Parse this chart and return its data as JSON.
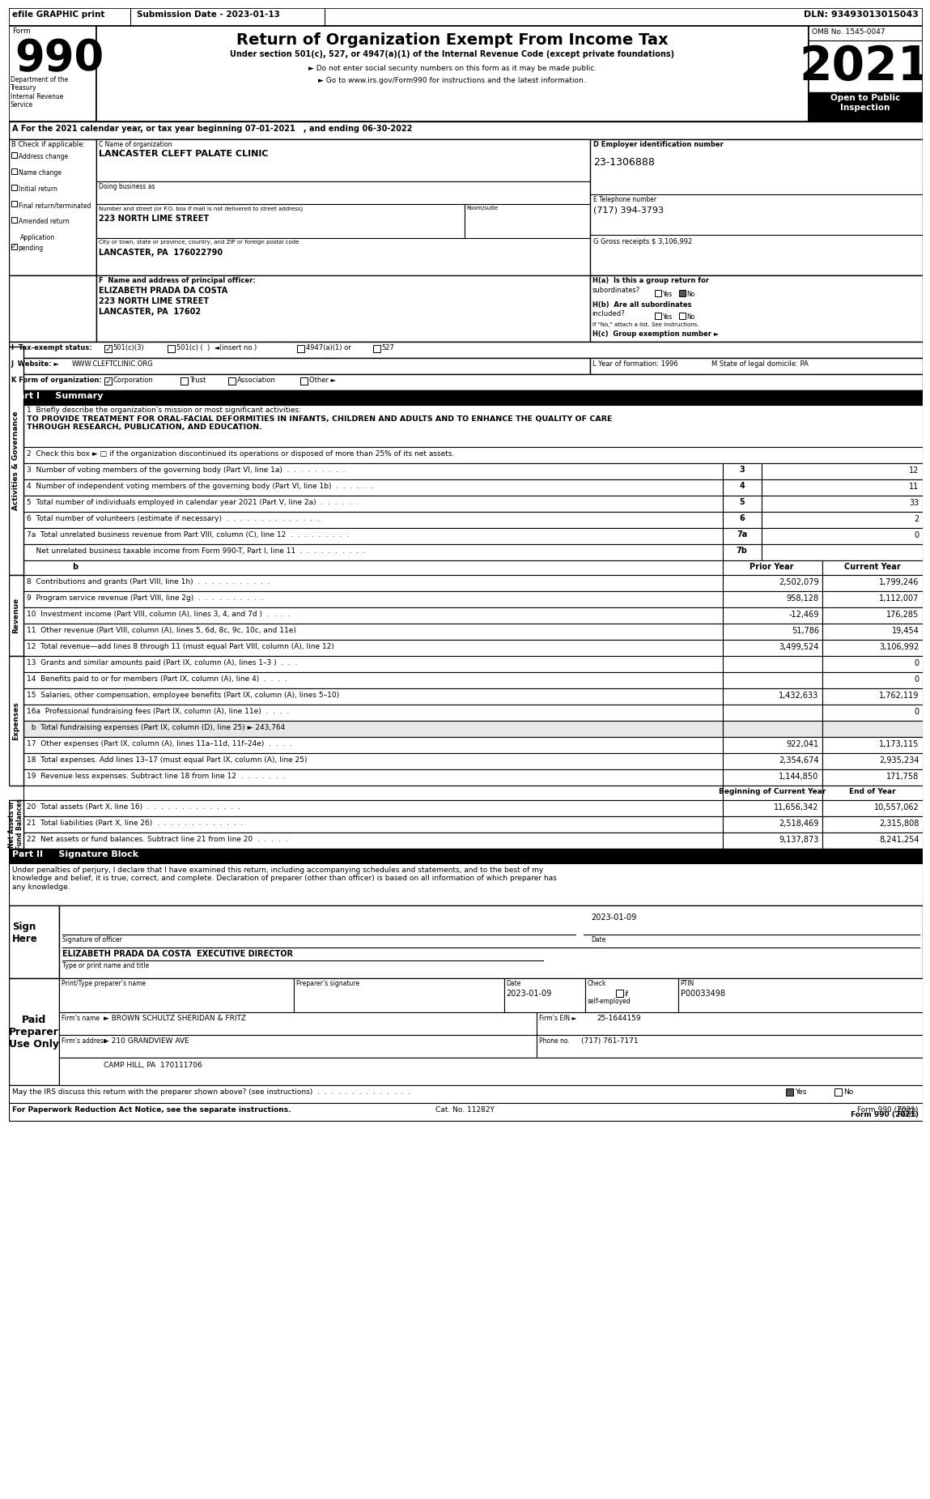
{
  "header_bar": {
    "efile_text": "efile GRAPHIC print",
    "submission_text": "Submission Date - 2023-01-13",
    "dln_text": "DLN: 93493013015043"
  },
  "form_title": "Return of Organization Exempt From Income Tax",
  "form_subtitle1": "Under section 501(c), 527, or 4947(a)(1) of the Internal Revenue Code (except private foundations)",
  "form_subtitle2": "► Do not enter social security numbers on this form as it may be made public.",
  "form_subtitle3": "► Go to www.irs.gov/Form990 for instructions and the latest information.",
  "form_number": "990",
  "form_year": "2021",
  "omb": "OMB No. 1545-0047",
  "open_to_public": "Open to Public\nInspection",
  "dept_treasury": "Department of the\nTreasury\nInternal Revenue\nService",
  "part_a": "A For the 2021 calendar year, or tax year beginning 07-01-2021   , and ending 06-30-2022",
  "section_b_label": "B Check if applicable:",
  "org_name_label": "C Name of organization",
  "org_name": "LANCASTER CLEFT PALATE CLINIC",
  "doing_business_as": "Doing business as",
  "street_label": "Number and street (or P.O. box if mail is not delivered to street address)",
  "room_suite_label": "Room/suite",
  "street": "223 NORTH LIME STREET",
  "city_label": "City or town, state or province, country, and ZIP or foreign postal code",
  "city": "LANCASTER, PA  176022790",
  "ein_label": "D Employer identification number",
  "ein": "23-1306888",
  "phone_label": "E Telephone number",
  "phone": "(717) 394-3793",
  "gross_receipts": "G Gross receipts $ 3,106,992",
  "principal_officer_label": "F  Name and address of principal officer:",
  "principal_officer_name": "ELIZABETH PRADA DA COSTA",
  "principal_officer_street": "223 NORTH LIME STREET",
  "principal_officer_city": "LANCASTER, PA  17602",
  "ha_label": "H(a)  Is this a group return for",
  "ha_text": "subordinates?",
  "hb_label": "H(b)  Are all subordinates",
  "hb_text": "included?",
  "hb_note": "If \"No,\" attach a list. See instructions.",
  "hc_label": "H(c)  Group exemption number ►",
  "tax_exempt_label": "I  Tax-exempt status:",
  "website_label": "J  Website: ►",
  "website": "WWW.CLEFTCLINIC.ORG",
  "k_label": "K Form of organization:",
  "l_label": "L Year of formation: 1996",
  "m_label": "M State of legal domicile: PA",
  "part1_header": "Part I     Summary",
  "line1_label": "1  Briefly describe the organization’s mission or most significant activities:",
  "line1_text": "TO PROVIDE TREATMENT FOR ORAL-FACIAL DEFORMITIES IN INFANTS, CHILDREN AND ADULTS AND TO ENHANCE THE QUALITY OF CARE\nTHROUGH RESEARCH, PUBLICATION, AND EDUCATION.",
  "activities_governance_label": "Activities & Governance",
  "line2_text": "2  Check this box ► □ if the organization discontinued its operations or disposed of more than 25% of its net assets.",
  "line3_text": "3  Number of voting members of the governing body (Part VI, line 1a)  .  .  .  .  .  .  .  .  .",
  "line3_num": "3",
  "line3_val": "12",
  "line4_text": "4  Number of independent voting members of the governing body (Part VI, line 1b)  .  .  .  .  .  .",
  "line4_num": "4",
  "line4_val": "11",
  "line5_text": "5  Total number of individuals employed in calendar year 2021 (Part V, line 2a)  .  .  .  .  .  .",
  "line5_num": "5",
  "line5_val": "33",
  "line6_text": "6  Total number of volunteers (estimate if necessary)  .  .  .  .  .  .  .  .  .  .  .  .  .  .",
  "line6_num": "6",
  "line6_val": "2",
  "line7a_text": "7a  Total unrelated business revenue from Part VIII, column (C), line 12  .  .  .  .  .  .  .  .  .",
  "line7a_num": "7a",
  "line7a_val": "0",
  "line7b_text": "    Net unrelated business taxable income from Form 990-T, Part I, line 11  .  .  .  .  .  .  .  .  .  .",
  "line7b_num": "7b",
  "line7b_val": "",
  "prior_year_header": "Prior Year",
  "current_year_header": "Current Year",
  "revenue_label": "Revenue",
  "line8_text": "8  Contributions and grants (Part VIII, line 1h)  .  .  .  .  .  .  .  .  .  .  .",
  "line8_prior": "2,502,079",
  "line8_current": "1,799,246",
  "line9_text": "9  Program service revenue (Part VIII, line 2g)  .  .  .  .  .  .  .  .  .  .",
  "line9_prior": "958,128",
  "line9_current": "1,112,007",
  "line10_text": "10  Investment income (Part VIII, column (A), lines 3, 4, and 7d )  .  .  .  .",
  "line10_prior": "-12,469",
  "line10_current": "176,285",
  "line11_text": "11  Other revenue (Part VIII, column (A), lines 5, 6d, 8c, 9c, 10c, and 11e)",
  "line11_prior": "51,786",
  "line11_current": "19,454",
  "line12_text": "12  Total revenue—add lines 8 through 11 (must equal Part VIII, column (A), line 12)",
  "line12_prior": "3,499,524",
  "line12_current": "3,106,992",
  "expenses_label": "Expenses",
  "line13_text": "13  Grants and similar amounts paid (Part IX, column (A), lines 1–3 )  .  .  .",
  "line13_prior": "",
  "line13_current": "0",
  "line14_text": "14  Benefits paid to or for members (Part IX, column (A), line 4)  .  .  .  .",
  "line14_prior": "",
  "line14_current": "0",
  "line15_text": "15  Salaries, other compensation, employee benefits (Part IX, column (A), lines 5–10)",
  "line15_prior": "1,432,633",
  "line15_current": "1,762,119",
  "line16a_text": "16a  Professional fundraising fees (Part IX, column (A), line 11e)  .  .  .  .",
  "line16a_prior": "",
  "line16a_current": "0",
  "line16b_text": "  b  Total fundraising expenses (Part IX, column (D), line 25) ► 243,764",
  "line17_text": "17  Other expenses (Part IX, column (A), lines 11a–11d, 11f–24e)  .  .  .  .",
  "line17_prior": "922,041",
  "line17_current": "1,173,115",
  "line18_text": "18  Total expenses. Add lines 13–17 (must equal Part IX, column (A), line 25)",
  "line18_prior": "2,354,674",
  "line18_current": "2,935,234",
  "line19_text": "19  Revenue less expenses. Subtract line 18 from line 12  .  .  .  .  .  .  .",
  "line19_prior": "1,144,850",
  "line19_current": "171,758",
  "net_assets_label": "Net Assets or\nFund Balances",
  "beg_year_header": "Beginning of Current Year",
  "end_year_header": "End of Year",
  "line20_text": "20  Total assets (Part X, line 16)  .  .  .  .  .  .  .  .  .  .  .  .  .  .",
  "line20_beg": "11,656,342",
  "line20_end": "10,557,062",
  "line21_text": "21  Total liabilities (Part X, line 26)  .  .  .  .  .  .  .  .  .  .  .  .  .",
  "line21_beg": "2,518,469",
  "line21_end": "2,315,808",
  "line22_text": "22  Net assets or fund balances. Subtract line 21 from line 20  .  .  .  .  .",
  "line22_beg": "9,137,873",
  "line22_end": "8,241,254",
  "part2_header": "Part II     Signature Block",
  "perjury_text": "Under penalties of perjury, I declare that I have examined this return, including accompanying schedules and statements, and to the best of my\nknowledge and belief, it is true, correct, and complete. Declaration of preparer (other than officer) is based on all information of which preparer has\nany knowledge.",
  "sign_here_label": "Sign\nHere",
  "signature_date": "2023-01-09",
  "signature_label": "Signature of officer",
  "signature_date_label": "Date",
  "officer_name": "ELIZABETH PRADA DA COSTA  EXECUTIVE DIRECTOR",
  "officer_title_label": "Type or print name and title",
  "paid_preparer_label": "Paid\nPreparer\nUse Only",
  "preparer_name_label": "Print/Type preparer’s name",
  "preparer_signature_label": "Preparer’s signature",
  "preparer_date_label": "Date",
  "check_label": "Check □ if\nself-employed",
  "ptin_label": "PTIN",
  "ptin": "P00033498",
  "preparer_date": "2023-01-09",
  "firms_name_label": "Firm’s name",
  "firms_name": "► BROWN SCHULTZ SHERIDAN & FRITZ",
  "firms_ein_label": "Firm’s EIN ►",
  "firms_ein": "25-1644159",
  "firms_address_label": "Firm’s address",
  "firms_address": "► 210 GRANDVIEW AVE",
  "firms_city": "CAMP HILL, PA  170111706",
  "phone_no_label": "Phone no.",
  "phone_no": "(717) 761-7171",
  "irs_discuss_text": "May the IRS discuss this return with the preparer shown above? (see instructions)  .  .  .  .  .  .  .  .  .  .  .  .  .  .",
  "paperwork_text": "For Paperwork Reduction Act Notice, see the separate instructions.",
  "cat_no": "Cat. No. 11282Y",
  "form_footer": "Form 990 (2021)"
}
